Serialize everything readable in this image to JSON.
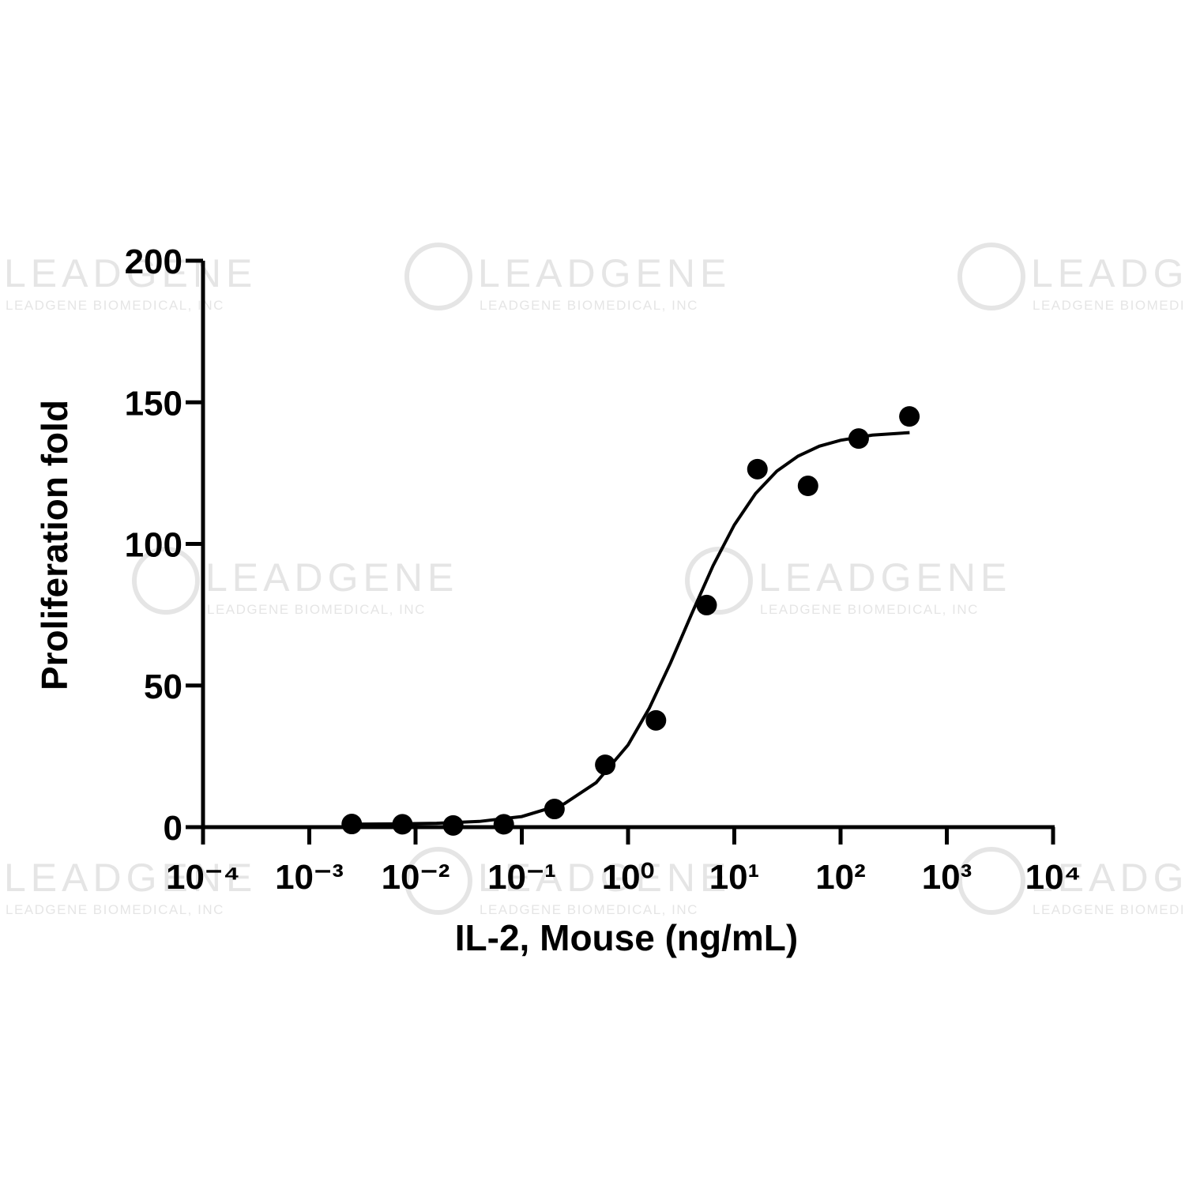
{
  "chart_data": {
    "type": "scatter",
    "watermark": {
      "title": "LEADGENE",
      "subtitle": "LEADGENE BIOMEDICAL, INC"
    },
    "xlabel": "IL-2, Mouse (ng/mL)",
    "ylabel": "Proliferation fold",
    "xscale": "log",
    "xlim": [
      0.0001,
      10000
    ],
    "xticks": [
      {
        "value": 0.0001,
        "label": "10⁻⁴"
      },
      {
        "value": 0.001,
        "label": "10⁻³"
      },
      {
        "value": 0.01,
        "label": "10⁻²"
      },
      {
        "value": 0.1,
        "label": "10⁻¹"
      },
      {
        "value": 1,
        "label": "10⁰"
      },
      {
        "value": 10,
        "label": "10¹"
      },
      {
        "value": 100,
        "label": "10²"
      },
      {
        "value": 1000,
        "label": "10³"
      },
      {
        "value": 10000,
        "label": "10⁴"
      }
    ],
    "ylim": [
      0,
      200
    ],
    "yticks": [
      0,
      50,
      100,
      150,
      200
    ],
    "color": "#000000",
    "x": [
      0.00251,
      0.00753,
      0.0226,
      0.0677,
      0.203,
      0.61,
      1.83,
      5.49,
      16.5,
      49.4,
      148.1,
      444.4
    ],
    "values": [
      1.1,
      1,
      0.6,
      1,
      6.4,
      22,
      37.7,
      78.4,
      126.4,
      120.5,
      137.2,
      145
    ],
    "fit": {
      "x": [
        0.00251,
        0.00631,
        0.0158,
        0.0398,
        0.1,
        0.251,
        0.501,
        1,
        1.585,
        2.512,
        3.981,
        6.31,
        10,
        15.85,
        25.12,
        39.81,
        63.1,
        100,
        199.5,
        446.7
      ],
      "values": [
        1.05,
        1.13,
        1.37,
        2.0,
        3.73,
        8.27,
        15.7,
        29.0,
        42.0,
        58.0,
        75.4,
        92.3,
        106.7,
        117.8,
        125.7,
        131.0,
        134.5,
        136.6,
        138.4,
        139.3
      ]
    }
  }
}
